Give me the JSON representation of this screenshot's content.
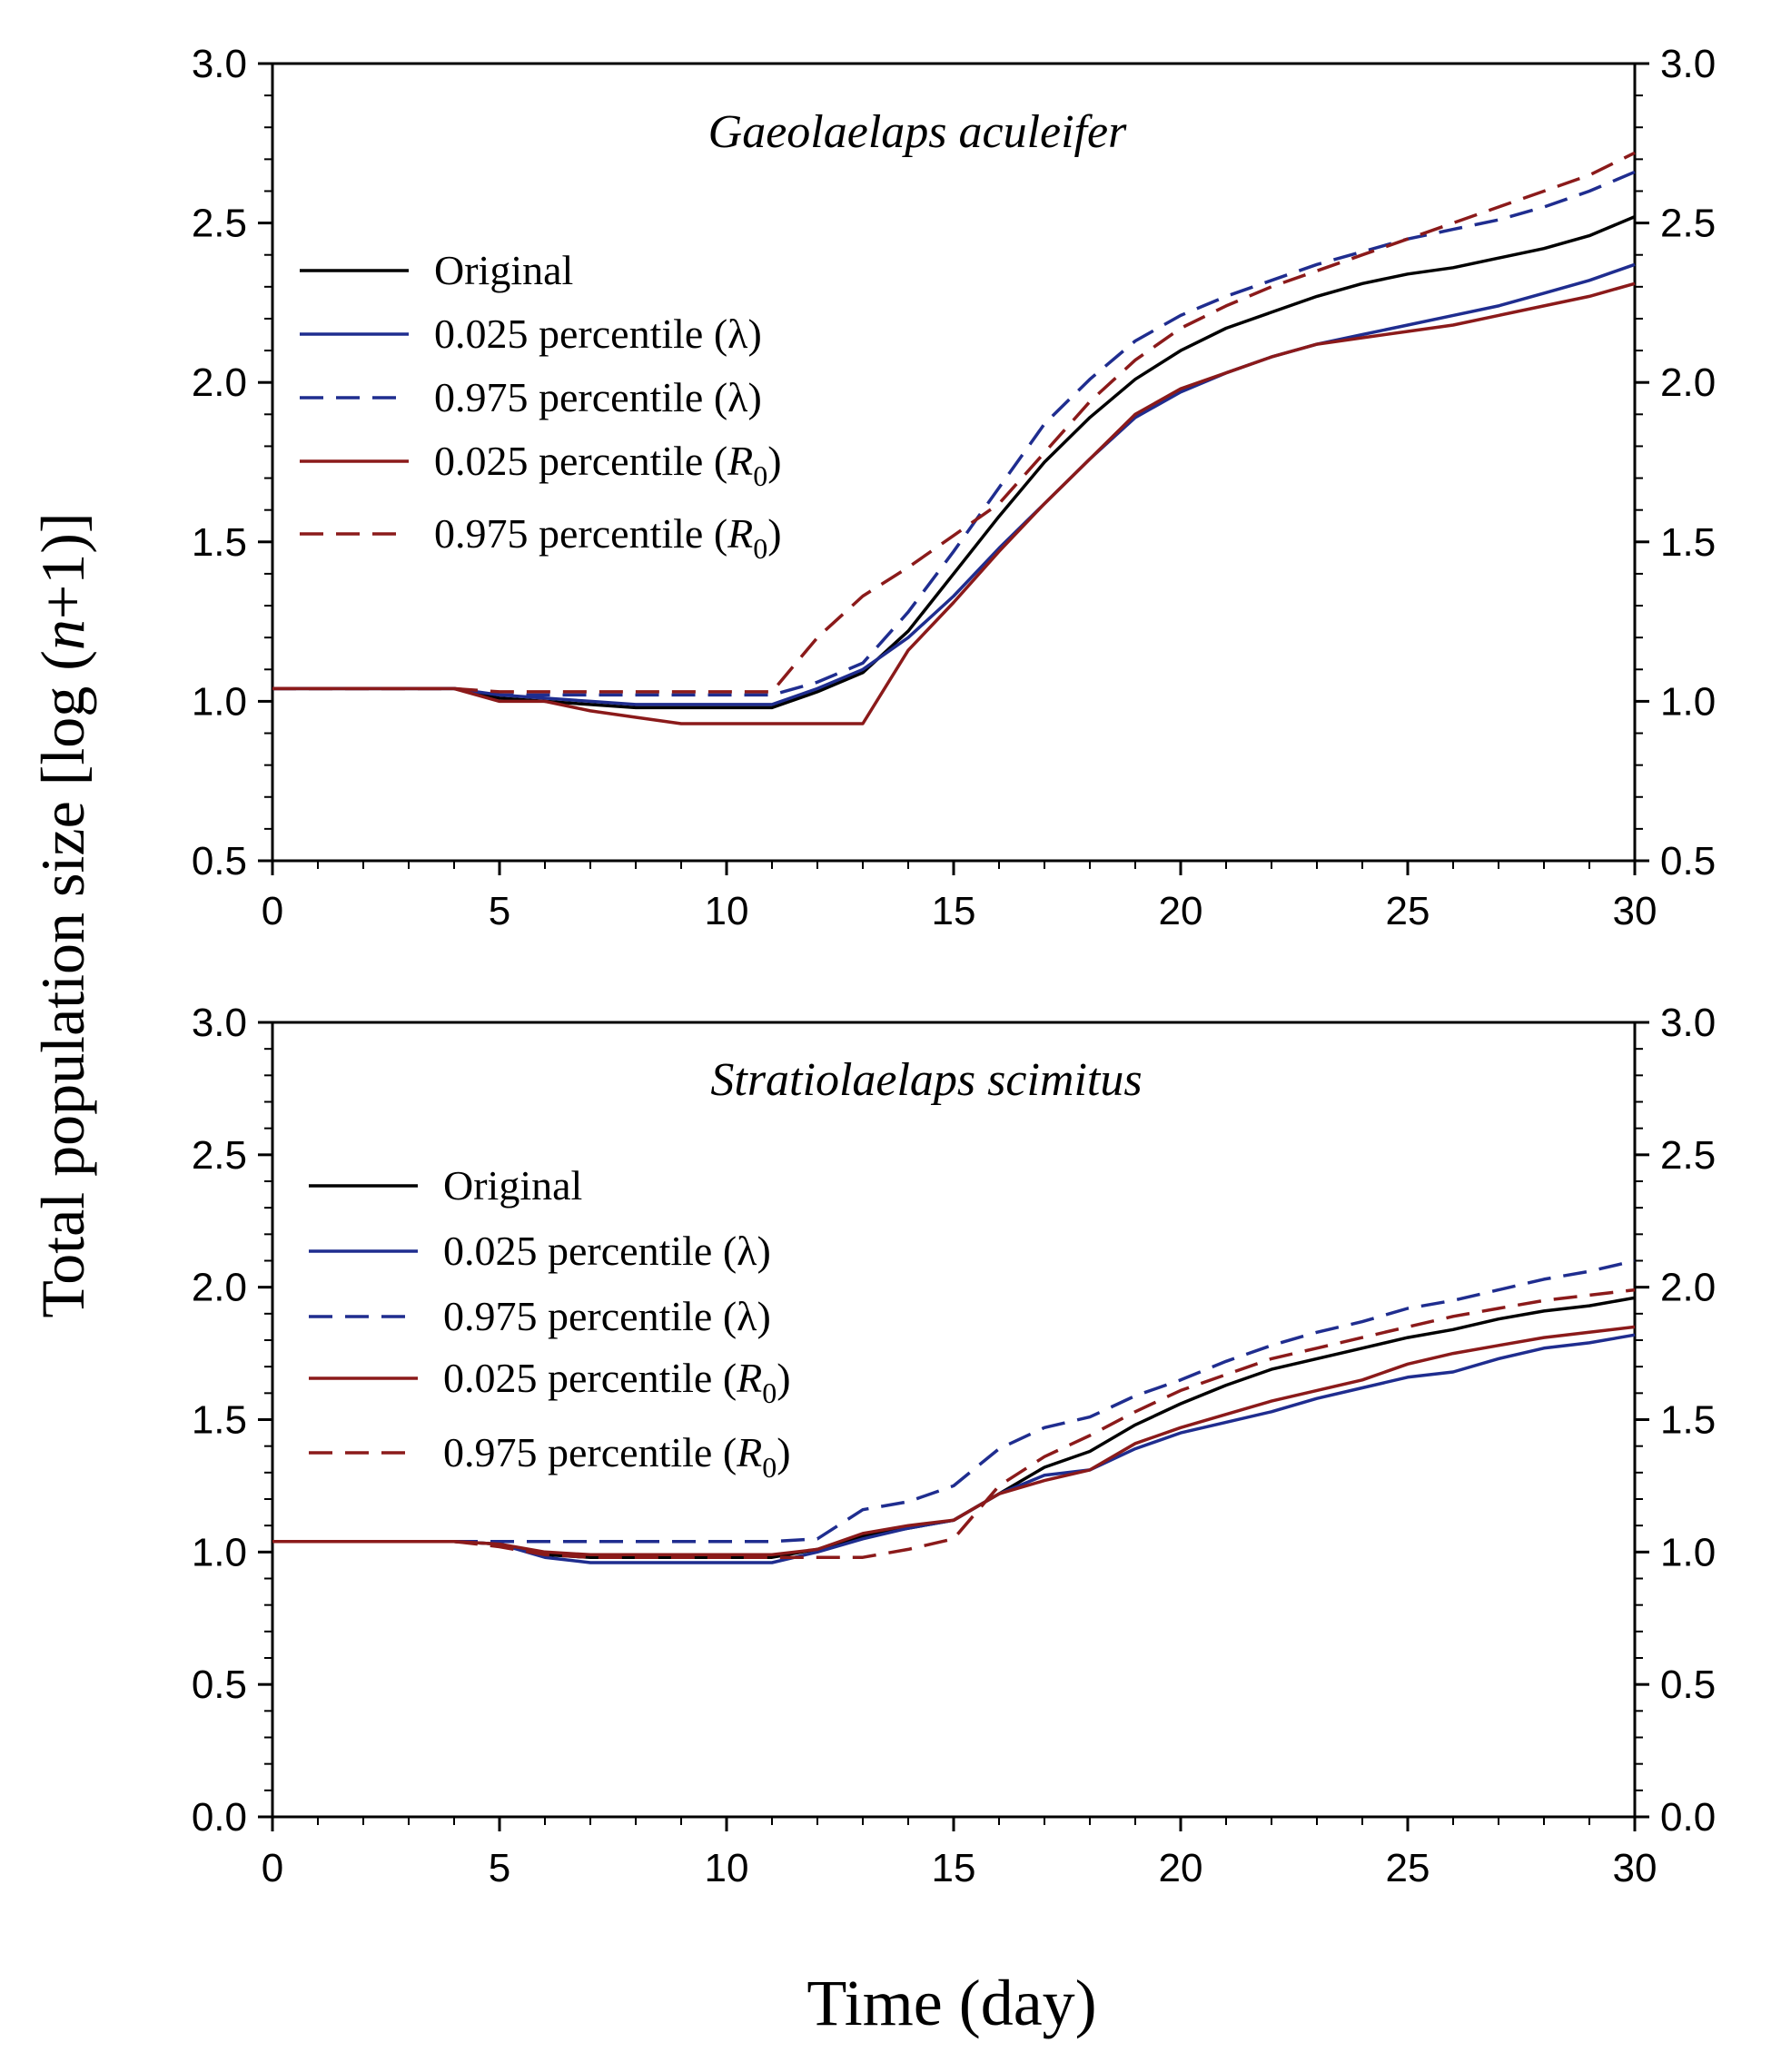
{
  "figure": {
    "ylabel_prefix": "Total population size [log (",
    "ylabel_var": "n",
    "ylabel_suffix": "+1)]",
    "xlabel": "Time (day)"
  },
  "chart_data": [
    {
      "type": "line",
      "title": "Gaeolaelaps aculeifer",
      "xlabel": "Time (day)",
      "ylabel": "Total population size [log (n+1)]",
      "xlim": [
        0,
        30
      ],
      "ylim": [
        0.5,
        3.0
      ],
      "xticks": [
        0,
        5,
        10,
        15,
        20,
        25,
        30
      ],
      "yticks": [
        0.5,
        1.0,
        1.5,
        2.0,
        2.5,
        3.0
      ],
      "xtick_labels": [
        "0",
        "5",
        "10",
        "15",
        "20",
        "25",
        "30"
      ],
      "ytick_labels": [
        "0.5",
        "1.0",
        "1.5",
        "2.0",
        "2.5",
        "3.0"
      ],
      "grid": false,
      "legend_position": "upper-left",
      "x": [
        0,
        1,
        2,
        3,
        4,
        5,
        6,
        7,
        8,
        9,
        10,
        11,
        12,
        13,
        14,
        15,
        16,
        17,
        18,
        19,
        20,
        21,
        22,
        23,
        24,
        25,
        26,
        27,
        28,
        29,
        30
      ],
      "series": [
        {
          "name": "Original",
          "label_main": "Original",
          "label_sub": "",
          "color": "#000000",
          "dash": "solid",
          "values": [
            1.04,
            1.04,
            1.04,
            1.04,
            1.04,
            1.01,
            1.0,
            0.99,
            0.98,
            0.98,
            0.98,
            0.98,
            1.03,
            1.09,
            1.22,
            1.4,
            1.58,
            1.75,
            1.89,
            2.01,
            2.1,
            2.17,
            2.22,
            2.27,
            2.31,
            2.34,
            2.36,
            2.39,
            2.42,
            2.46,
            2.52
          ]
        },
        {
          "name": "0.025 percentile (λ)",
          "label_main": "0.025 percentile (λ)",
          "label_sub": "",
          "color": "#1f2d8f",
          "dash": "solid",
          "values": [
            1.04,
            1.04,
            1.04,
            1.04,
            1.04,
            1.02,
            1.01,
            1.0,
            0.99,
            0.99,
            0.99,
            0.99,
            1.04,
            1.1,
            1.2,
            1.33,
            1.48,
            1.62,
            1.76,
            1.89,
            1.97,
            2.03,
            2.08,
            2.12,
            2.15,
            2.18,
            2.21,
            2.24,
            2.28,
            2.32,
            2.37
          ]
        },
        {
          "name": "0.975 percentile (λ)",
          "label_main": "0.975 percentile (λ)",
          "label_sub": "",
          "color": "#1f2d8f",
          "dash": "dashed",
          "values": [
            1.04,
            1.04,
            1.04,
            1.04,
            1.04,
            1.02,
            1.02,
            1.02,
            1.02,
            1.02,
            1.02,
            1.02,
            1.06,
            1.12,
            1.28,
            1.47,
            1.67,
            1.87,
            2.01,
            2.13,
            2.21,
            2.27,
            2.32,
            2.37,
            2.41,
            2.45,
            2.48,
            2.51,
            2.55,
            2.6,
            2.66
          ]
        },
        {
          "name": "0.025 percentile (R0)",
          "label_main": "0.025 percentile (R",
          "label_sub": "0",
          "color": "#8b1a1a",
          "dash": "solid",
          "values": [
            1.04,
            1.04,
            1.04,
            1.04,
            1.04,
            1.0,
            1.0,
            0.97,
            0.95,
            0.93,
            0.93,
            0.93,
            0.93,
            0.93,
            1.16,
            1.31,
            1.47,
            1.62,
            1.76,
            1.9,
            1.98,
            2.03,
            2.08,
            2.12,
            2.14,
            2.16,
            2.18,
            2.21,
            2.24,
            2.27,
            2.31
          ]
        },
        {
          "name": "0.975 percentile (R0)",
          "label_main": "0.975 percentile (R",
          "label_sub": "0",
          "color": "#8b1a1a",
          "dash": "dashed",
          "values": [
            1.04,
            1.04,
            1.04,
            1.04,
            1.04,
            1.03,
            1.03,
            1.03,
            1.03,
            1.03,
            1.03,
            1.03,
            1.2,
            1.33,
            1.42,
            1.52,
            1.62,
            1.78,
            1.94,
            2.07,
            2.17,
            2.24,
            2.3,
            2.35,
            2.4,
            2.45,
            2.5,
            2.55,
            2.6,
            2.65,
            2.72
          ]
        }
      ]
    },
    {
      "type": "line",
      "title": "Stratiolaelaps scimitus",
      "xlabel": "Time (day)",
      "ylabel": "Total population size [log (n+1)]",
      "xlim": [
        0,
        30
      ],
      "ylim": [
        0.0,
        3.0
      ],
      "xticks": [
        0,
        5,
        10,
        15,
        20,
        25,
        30
      ],
      "yticks": [
        0.0,
        0.5,
        1.0,
        1.5,
        2.0,
        2.5,
        3.0
      ],
      "xtick_labels": [
        "0",
        "5",
        "10",
        "15",
        "20",
        "25",
        "30"
      ],
      "ytick_labels": [
        "0.0",
        "0.5",
        "1.0",
        "1.5",
        "2.0",
        "2.5",
        "3.0"
      ],
      "grid": false,
      "legend_position": "upper-left",
      "x": [
        0,
        1,
        2,
        3,
        4,
        5,
        6,
        7,
        8,
        9,
        10,
        11,
        12,
        13,
        14,
        15,
        16,
        17,
        18,
        19,
        20,
        21,
        22,
        23,
        24,
        25,
        26,
        27,
        28,
        29,
        30
      ],
      "series": [
        {
          "name": "Original",
          "label_main": "Original",
          "label_sub": "",
          "color": "#000000",
          "dash": "solid",
          "values": [
            1.04,
            1.04,
            1.04,
            1.04,
            1.04,
            1.03,
            0.99,
            0.98,
            0.98,
            0.98,
            0.98,
            0.98,
            1.01,
            1.06,
            1.09,
            1.12,
            1.22,
            1.32,
            1.38,
            1.48,
            1.56,
            1.63,
            1.69,
            1.73,
            1.77,
            1.81,
            1.84,
            1.88,
            1.91,
            1.93,
            1.96
          ]
        },
        {
          "name": "0.025 percentile (λ)",
          "label_main": "0.025 percentile (λ)",
          "label_sub": "",
          "color": "#1f2d8f",
          "dash": "solid",
          "values": [
            1.04,
            1.04,
            1.04,
            1.04,
            1.04,
            1.03,
            0.98,
            0.96,
            0.96,
            0.96,
            0.96,
            0.96,
            1.0,
            1.05,
            1.09,
            1.12,
            1.22,
            1.29,
            1.31,
            1.39,
            1.45,
            1.49,
            1.53,
            1.58,
            1.62,
            1.66,
            1.68,
            1.73,
            1.77,
            1.79,
            1.82
          ]
        },
        {
          "name": "0.975 percentile (λ)",
          "label_main": "0.975 percentile (λ)",
          "label_sub": "",
          "color": "#1f2d8f",
          "dash": "dashed",
          "values": [
            1.04,
            1.04,
            1.04,
            1.04,
            1.04,
            1.04,
            1.04,
            1.04,
            1.04,
            1.04,
            1.04,
            1.04,
            1.05,
            1.16,
            1.19,
            1.25,
            1.39,
            1.47,
            1.51,
            1.59,
            1.65,
            1.72,
            1.78,
            1.83,
            1.87,
            1.92,
            1.95,
            1.99,
            2.03,
            2.06,
            2.1
          ]
        },
        {
          "name": "0.025 percentile (R0)",
          "label_main": "0.025 percentile (R",
          "label_sub": "0",
          "color": "#8b1a1a",
          "dash": "solid",
          "values": [
            1.04,
            1.04,
            1.04,
            1.04,
            1.04,
            1.03,
            1.0,
            0.99,
            0.99,
            0.99,
            0.99,
            0.99,
            1.01,
            1.07,
            1.1,
            1.12,
            1.22,
            1.27,
            1.31,
            1.41,
            1.47,
            1.52,
            1.57,
            1.61,
            1.65,
            1.71,
            1.75,
            1.78,
            1.81,
            1.83,
            1.85
          ]
        },
        {
          "name": "0.975 percentile (R0)",
          "label_main": "0.975 percentile (R",
          "label_sub": "0",
          "color": "#8b1a1a",
          "dash": "dashed",
          "values": [
            1.04,
            1.04,
            1.04,
            1.04,
            1.04,
            1.02,
            0.99,
            0.98,
            0.98,
            0.98,
            0.98,
            0.98,
            0.98,
            0.98,
            1.01,
            1.05,
            1.25,
            1.36,
            1.44,
            1.53,
            1.61,
            1.67,
            1.73,
            1.77,
            1.81,
            1.85,
            1.89,
            1.92,
            1.95,
            1.97,
            1.99
          ]
        }
      ]
    }
  ]
}
